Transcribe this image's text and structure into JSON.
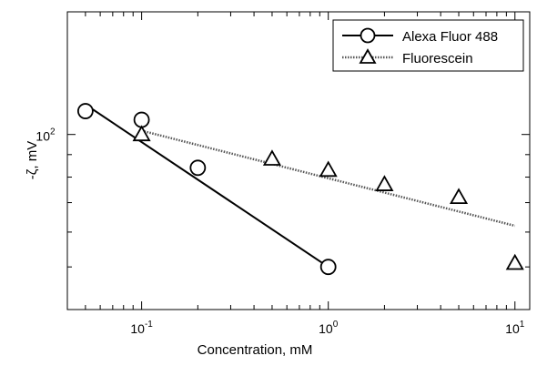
{
  "chart_data": {
    "type": "scatter",
    "title": "",
    "xlabel": "Concentration, mM",
    "ylabel": "-ζ, mV",
    "x_scale": "log",
    "y_scale": "log",
    "xlim": [
      0.04,
      12
    ],
    "ylim": [
      40,
      190
    ],
    "x_ticks": [
      {
        "value": 0.1,
        "base": "10",
        "exp": "-1"
      },
      {
        "value": 1,
        "base": "10",
        "exp": "0"
      },
      {
        "value": 10,
        "base": "10",
        "exp": "1"
      }
    ],
    "y_ticks": [
      {
        "value": 100,
        "base": "10",
        "exp": "2"
      }
    ],
    "legend_position": "top-right",
    "series": [
      {
        "name": "Alexa Fluor 488",
        "marker": "circle",
        "line_style": "solid",
        "x": [
          0.05,
          0.1,
          0.2,
          1.0
        ],
        "y": [
          113,
          108,
          84,
          50
        ],
        "fit": {
          "x": [
            0.05,
            1.0
          ],
          "y": [
            117,
            50
          ]
        }
      },
      {
        "name": "Fluorescein",
        "marker": "triangle",
        "line_style": "dotted",
        "x": [
          0.1,
          0.5,
          1.0,
          2.0,
          5.0,
          10.0
        ],
        "y": [
          100,
          88,
          83,
          77,
          72,
          51
        ],
        "fit": {
          "x": [
            0.1,
            10.0
          ],
          "y": [
            102,
            62
          ]
        }
      }
    ],
    "colors": {
      "axes": "#000000",
      "alexa": "#000000",
      "fluorescein": "#000000"
    }
  }
}
